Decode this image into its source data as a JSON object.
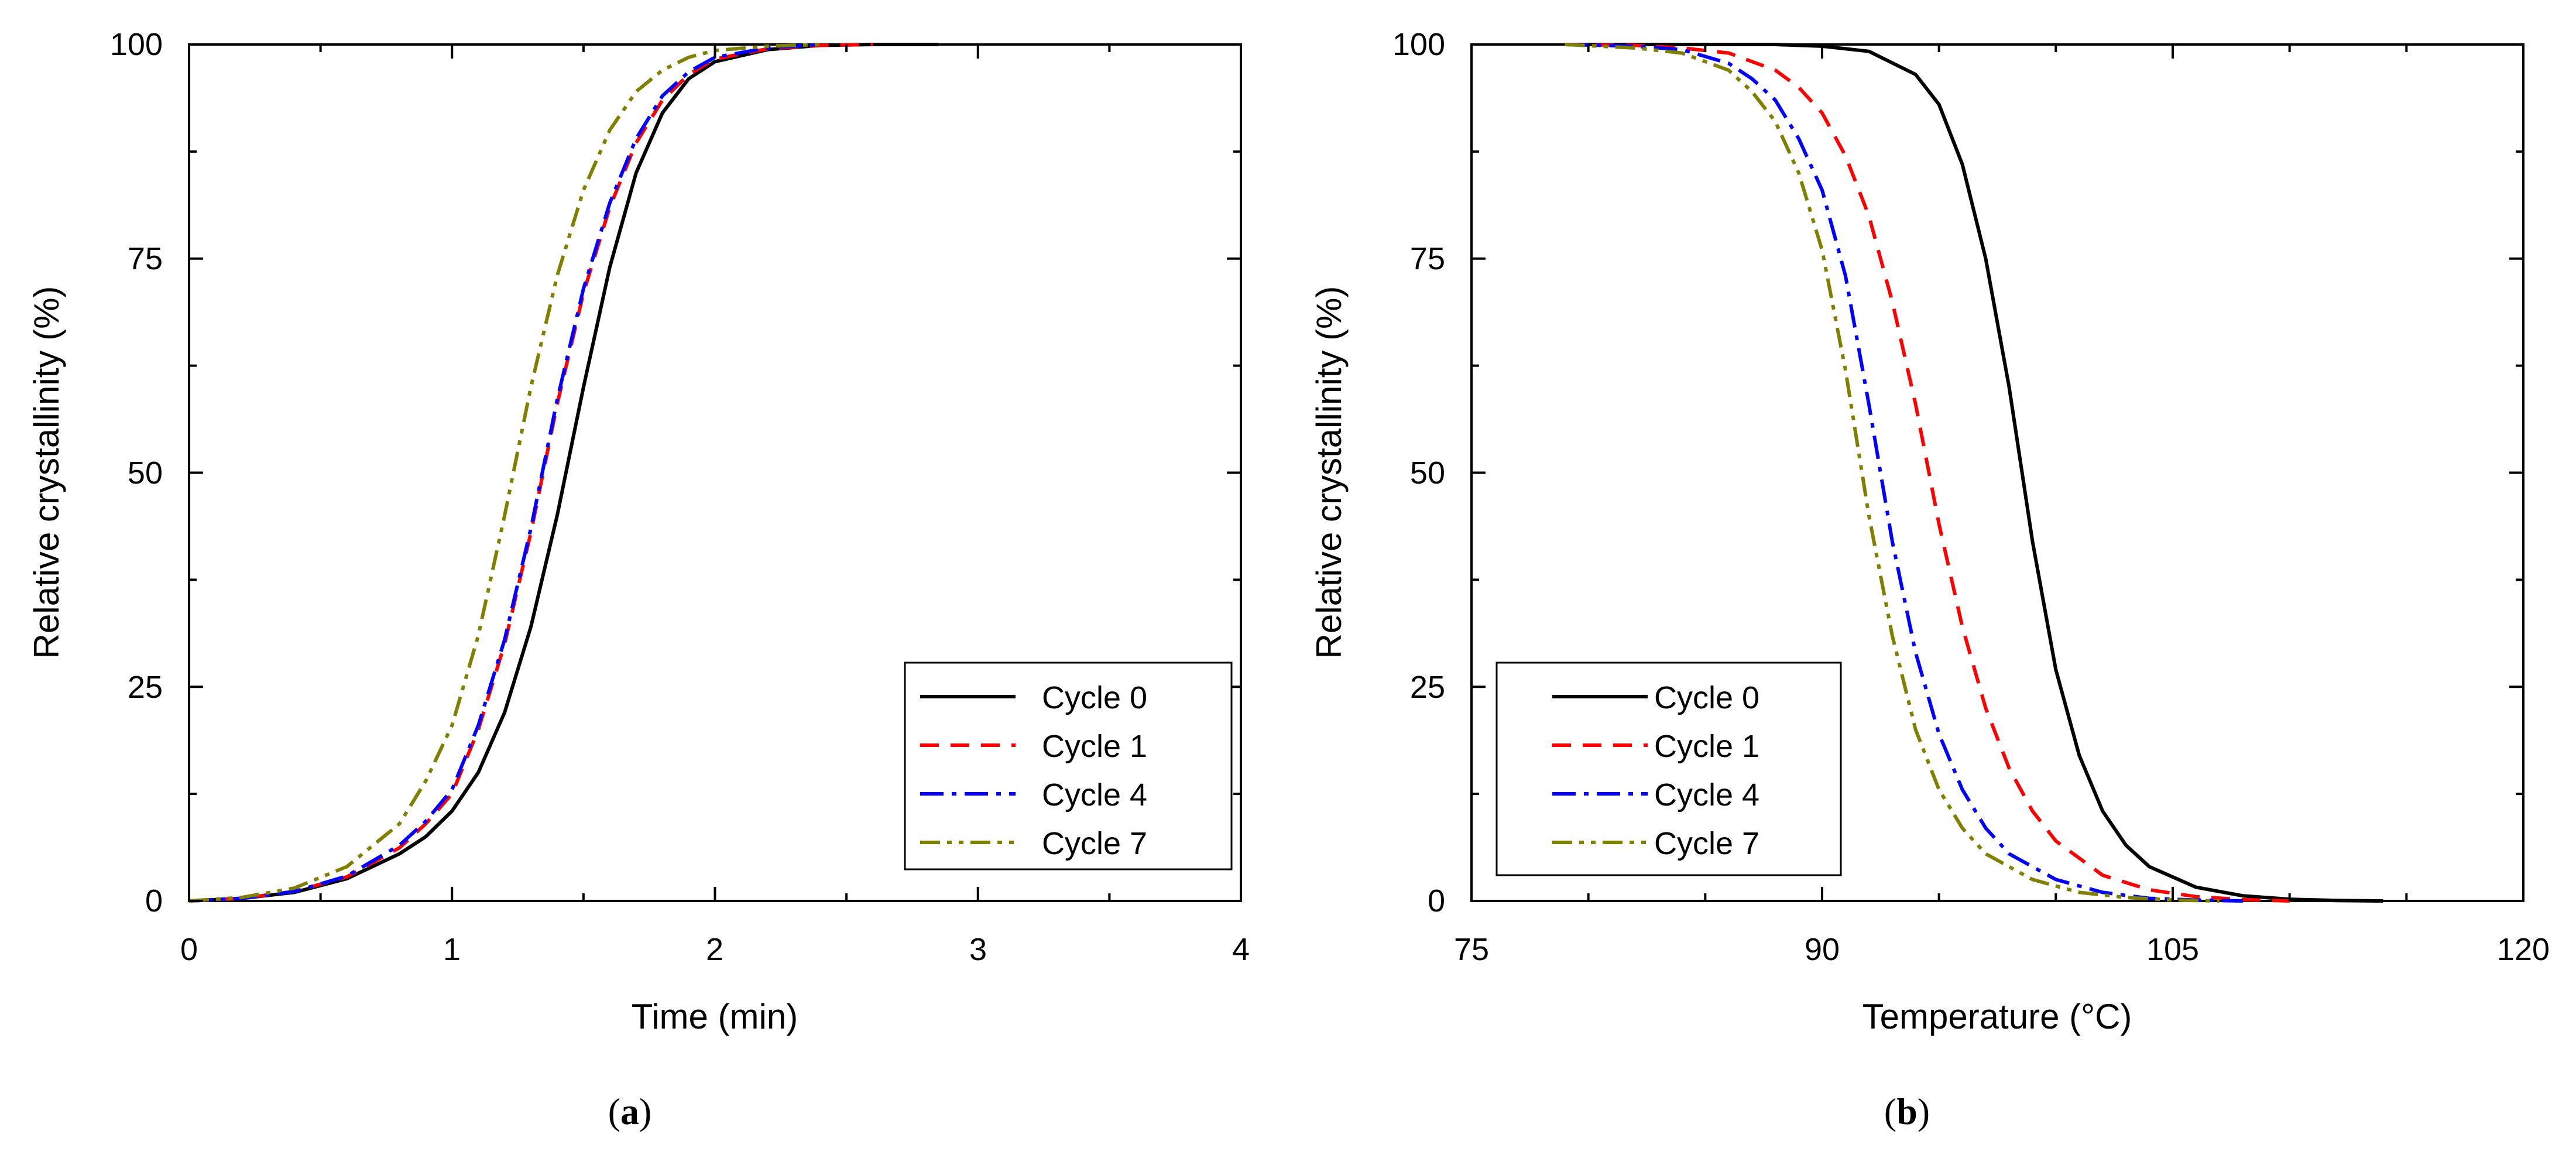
{
  "chart_data": [
    {
      "type": "line",
      "panel": "a",
      "caption": {
        "open": "(",
        "letter": "a",
        "close": ")"
      },
      "title": "",
      "xlabel": "Time (min)",
      "ylabel": "Relative crystallinity (%)",
      "xlim": [
        0,
        4
      ],
      "ylim": [
        0,
        100
      ],
      "xticks": [
        0,
        1,
        2,
        3,
        4
      ],
      "yticks": [
        0,
        25,
        50,
        75,
        100
      ],
      "xtick_labels": [
        "0",
        "1",
        "2",
        "3",
        "4"
      ],
      "ytick_labels": [
        "0",
        "25",
        "50",
        "75",
        "100"
      ],
      "grid": false,
      "legend_position": "bottom-right",
      "series": [
        {
          "name": "Cycle 0",
          "color": "#000000",
          "dash": "solid",
          "x": [
            0,
            0.2,
            0.4,
            0.6,
            0.8,
            0.9,
            1.0,
            1.1,
            1.2,
            1.3,
            1.4,
            1.5,
            1.6,
            1.7,
            1.8,
            1.9,
            2.0,
            2.2,
            2.4,
            2.6,
            2.85
          ],
          "y": [
            0,
            0.3,
            1.0,
            2.6,
            5.5,
            7.5,
            10.5,
            15,
            22,
            32,
            45,
            60,
            74,
            85,
            92,
            96,
            98,
            99.4,
            99.9,
            100,
            100
          ]
        },
        {
          "name": "Cycle 1",
          "color": "#ff0000",
          "dash": "dashed",
          "x": [
            0,
            0.2,
            0.4,
            0.6,
            0.8,
            0.9,
            1.0,
            1.1,
            1.2,
            1.3,
            1.4,
            1.5,
            1.6,
            1.7,
            1.8,
            1.9,
            2.0,
            2.2,
            2.4,
            2.6
          ],
          "y": [
            0,
            0.3,
            1.1,
            2.8,
            6.2,
            9,
            12.5,
            20,
            30,
            43,
            58,
            71,
            81,
            88.5,
            93.5,
            96.5,
            98.3,
            99.5,
            99.9,
            100
          ]
        },
        {
          "name": "Cycle 4",
          "color": "#0000ff",
          "dash": "dashdot",
          "x": [
            0,
            0.2,
            0.4,
            0.6,
            0.8,
            0.9,
            1.0,
            1.1,
            1.2,
            1.3,
            1.4,
            1.5,
            1.6,
            1.7,
            1.8,
            1.9,
            2.0,
            2.2,
            2.4
          ],
          "y": [
            0,
            0.3,
            1.1,
            2.9,
            6.5,
            9.3,
            13,
            20.5,
            30.5,
            43.5,
            58.5,
            71.5,
            81.5,
            89,
            94,
            96.8,
            98.5,
            99.6,
            100
          ]
        },
        {
          "name": "Cycle 7",
          "color": "#808000",
          "dash": "dashdotdot",
          "x": [
            0,
            0.2,
            0.4,
            0.6,
            0.8,
            0.9,
            1.0,
            1.1,
            1.2,
            1.3,
            1.4,
            1.5,
            1.6,
            1.7,
            1.8,
            1.9,
            2.0,
            2.2,
            2.4
          ],
          "y": [
            0,
            0.4,
            1.5,
            4,
            9,
            14,
            20.5,
            31,
            45,
            60,
            73,
            83,
            90,
            94.5,
            97,
            98.5,
            99.3,
            99.8,
            100
          ]
        }
      ]
    },
    {
      "type": "line",
      "panel": "b",
      "caption": {
        "open": "(",
        "letter": "b",
        "close": ")"
      },
      "title": "",
      "xlabel": "Temperature (°C)",
      "ylabel": "Relative crystallinity (%)",
      "xlim": [
        75,
        120
      ],
      "ylim": [
        0,
        100
      ],
      "xticks": [
        75,
        90,
        105,
        120
      ],
      "yticks": [
        0,
        25,
        50,
        75,
        100
      ],
      "xtick_labels": [
        "75",
        "90",
        "105",
        "120"
      ],
      "ytick_labels": [
        "0",
        "25",
        "50",
        "75",
        "100"
      ],
      "grid": false,
      "legend_position": "bottom-left",
      "series": [
        {
          "name": "Cycle 0",
          "color": "#000000",
          "dash": "solid",
          "x": [
            79,
            83,
            86,
            88,
            90,
            92,
            94,
            95,
            96,
            97,
            98,
            99,
            100,
            101,
            102,
            103,
            104,
            106,
            108,
            110,
            112,
            114
          ],
          "y": [
            100,
            100,
            100,
            100,
            99.8,
            99.2,
            96.5,
            93,
            86,
            75,
            60,
            42,
            27,
            17,
            10.5,
            6.5,
            4,
            1.6,
            0.6,
            0.2,
            0.05,
            0
          ]
        },
        {
          "name": "Cycle 1",
          "color": "#ff0000",
          "dash": "dashed",
          "x": [
            79,
            82,
            84,
            86,
            88,
            89,
            90,
            91,
            92,
            93,
            94,
            95,
            96,
            97,
            98,
            99,
            100,
            102,
            104,
            106,
            108,
            110
          ],
          "y": [
            100,
            99.9,
            99.6,
            99,
            97,
            95,
            92,
            87,
            80,
            70,
            58,
            44,
            32,
            22.5,
            15.5,
            10.5,
            7,
            3,
            1.3,
            0.5,
            0.15,
            0
          ]
        },
        {
          "name": "Cycle 4",
          "color": "#0000ff",
          "dash": "dashdot",
          "x": [
            79,
            82,
            84,
            86,
            87,
            88,
            89,
            90,
            91,
            92,
            93,
            94,
            95,
            96,
            97,
            98,
            100,
            102,
            104,
            106,
            108
          ],
          "y": [
            100,
            99.8,
            99.4,
            97.8,
            96,
            93.5,
            89,
            83,
            73,
            58,
            42,
            29,
            19.5,
            13,
            8.5,
            5.5,
            2.5,
            1,
            0.3,
            0.1,
            0
          ]
        },
        {
          "name": "Cycle 7",
          "color": "#808000",
          "dash": "dashdotdot",
          "x": [
            79,
            82,
            84,
            86,
            87,
            88,
            89,
            90,
            91,
            92,
            93,
            94,
            95,
            96,
            97,
            99,
            101,
            103,
            105,
            107
          ],
          "y": [
            100,
            99.6,
            99,
            97,
            94.5,
            91,
            85,
            76,
            62,
            45,
            31,
            20,
            13,
            8.5,
            5.5,
            2.5,
            1,
            0.4,
            0.1,
            0
          ]
        }
      ]
    }
  ]
}
